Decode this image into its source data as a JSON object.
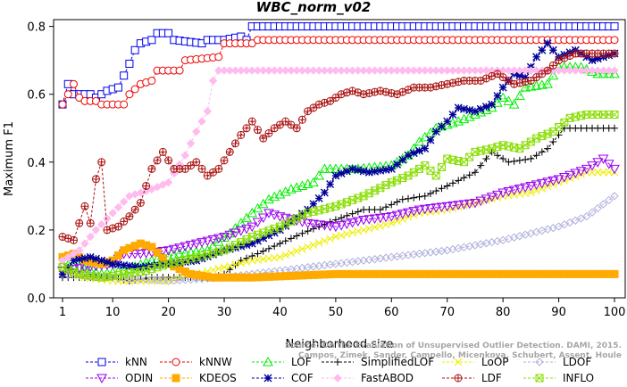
{
  "chart_data": {
    "type": "line",
    "title": "WBC_norm_v02",
    "xlabel": "Neighborhood size",
    "ylabel": "Maximum F1",
    "xlim": [
      1,
      100
    ],
    "ylim": [
      0,
      0.82
    ],
    "xticks": [
      1,
      10,
      20,
      30,
      40,
      50,
      60,
      70,
      80,
      90,
      100
    ],
    "yticks": [
      0.0,
      0.2,
      0.4,
      0.6,
      0.8
    ],
    "grid": false,
    "legend_position": "bottom",
    "watermark": [
      "Source: On the Evaluation of Unsupervised Outlier Detection. DAMI, 2015.",
      "Campos, Zimek, Sander, Campello, Micenkova, Schubert, Assent, Houle"
    ],
    "series": [
      {
        "name": "kNN",
        "color": "#0000ee",
        "marker": "square",
        "points": [
          [
            1,
            0.57
          ],
          [
            2,
            0.63
          ],
          [
            3,
            0.6
          ],
          [
            6,
            0.6
          ],
          [
            7,
            0.59
          ],
          [
            9,
            0.61
          ],
          [
            11,
            0.62
          ],
          [
            13,
            0.69
          ],
          [
            14,
            0.73
          ],
          [
            15,
            0.75
          ],
          [
            17,
            0.76
          ],
          [
            18,
            0.78
          ],
          [
            20,
            0.78
          ],
          [
            21,
            0.76
          ],
          [
            26,
            0.75
          ],
          [
            27,
            0.76
          ],
          [
            30,
            0.76
          ],
          [
            33,
            0.77
          ],
          [
            34,
            0.76
          ],
          [
            35,
            0.8
          ],
          [
            100,
            0.8
          ]
        ]
      },
      {
        "name": "kNNW",
        "color": "#ee0000",
        "marker": "circle",
        "points": [
          [
            1,
            0.57
          ],
          [
            2,
            0.6
          ],
          [
            3,
            0.63
          ],
          [
            4,
            0.59
          ],
          [
            5,
            0.58
          ],
          [
            7,
            0.58
          ],
          [
            8,
            0.57
          ],
          [
            12,
            0.57
          ],
          [
            13,
            0.6
          ],
          [
            15,
            0.63
          ],
          [
            17,
            0.64
          ],
          [
            18,
            0.67
          ],
          [
            22,
            0.67
          ],
          [
            23,
            0.7
          ],
          [
            29,
            0.71
          ],
          [
            30,
            0.75
          ],
          [
            35,
            0.75
          ],
          [
            36,
            0.76
          ],
          [
            80,
            0.76
          ],
          [
            100,
            0.76
          ]
        ]
      },
      {
        "name": "LOF",
        "color": "#00ee00",
        "marker": "triangle",
        "points": [
          [
            1,
            0.1
          ],
          [
            4,
            0.09
          ],
          [
            8,
            0.07
          ],
          [
            12,
            0.08
          ],
          [
            17,
            0.11
          ],
          [
            22,
            0.13
          ],
          [
            27,
            0.14
          ],
          [
            31,
            0.19
          ],
          [
            35,
            0.25
          ],
          [
            38,
            0.29
          ],
          [
            42,
            0.32
          ],
          [
            46,
            0.34
          ],
          [
            48,
            0.38
          ],
          [
            54,
            0.38
          ],
          [
            60,
            0.39
          ],
          [
            63,
            0.42
          ],
          [
            65,
            0.46
          ],
          [
            68,
            0.5
          ],
          [
            72,
            0.52
          ],
          [
            75,
            0.54
          ],
          [
            78,
            0.56
          ],
          [
            80,
            0.59
          ],
          [
            82,
            0.57
          ],
          [
            84,
            0.62
          ],
          [
            88,
            0.63
          ],
          [
            90,
            0.68
          ],
          [
            94,
            0.68
          ],
          [
            97,
            0.66
          ],
          [
            100,
            0.66
          ]
        ]
      },
      {
        "name": "SimplifiedLOF",
        "color": "#000000",
        "marker": "plus",
        "points": [
          [
            1,
            0.06
          ],
          [
            5,
            0.06
          ],
          [
            10,
            0.06
          ],
          [
            13,
            0.05
          ],
          [
            17,
            0.06
          ],
          [
            22,
            0.06
          ],
          [
            28,
            0.06
          ],
          [
            30,
            0.07
          ],
          [
            33,
            0.11
          ],
          [
            36,
            0.13
          ],
          [
            40,
            0.16
          ],
          [
            44,
            0.19
          ],
          [
            50,
            0.23
          ],
          [
            55,
            0.26
          ],
          [
            58,
            0.26
          ],
          [
            62,
            0.29
          ],
          [
            66,
            0.3
          ],
          [
            70,
            0.33
          ],
          [
            75,
            0.37
          ],
          [
            78,
            0.43
          ],
          [
            81,
            0.4
          ],
          [
            85,
            0.41
          ],
          [
            88,
            0.44
          ],
          [
            90,
            0.48
          ],
          [
            91,
            0.5
          ],
          [
            100,
            0.5
          ]
        ]
      },
      {
        "name": "LoOP",
        "color": "#eeee00",
        "marker": "x",
        "points": [
          [
            1,
            0.08
          ],
          [
            5,
            0.06
          ],
          [
            10,
            0.05
          ],
          [
            20,
            0.05
          ],
          [
            25,
            0.07
          ],
          [
            30,
            0.09
          ],
          [
            35,
            0.11
          ],
          [
            40,
            0.12
          ],
          [
            45,
            0.15
          ],
          [
            50,
            0.18
          ],
          [
            55,
            0.2
          ],
          [
            60,
            0.22
          ],
          [
            65,
            0.25
          ],
          [
            70,
            0.26
          ],
          [
            75,
            0.28
          ],
          [
            80,
            0.3
          ],
          [
            85,
            0.31
          ],
          [
            90,
            0.34
          ],
          [
            95,
            0.37
          ],
          [
            100,
            0.37
          ]
        ]
      },
      {
        "name": "LDOF",
        "color": "#b0b0dd",
        "marker": "diamond",
        "points": [
          [
            1,
            0.07
          ],
          [
            10,
            0.06
          ],
          [
            20,
            0.05
          ],
          [
            30,
            0.06
          ],
          [
            40,
            0.08
          ],
          [
            50,
            0.1
          ],
          [
            60,
            0.12
          ],
          [
            70,
            0.14
          ],
          [
            80,
            0.17
          ],
          [
            90,
            0.21
          ],
          [
            95,
            0.24
          ],
          [
            100,
            0.3
          ]
        ]
      },
      {
        "name": "ODIN",
        "color": "#9900ee",
        "marker": "invtriangle",
        "points": [
          [
            1,
            0.08
          ],
          [
            5,
            0.09
          ],
          [
            10,
            0.1
          ],
          [
            12,
            0.13
          ],
          [
            15,
            0.13
          ],
          [
            20,
            0.14
          ],
          [
            25,
            0.16
          ],
          [
            30,
            0.18
          ],
          [
            35,
            0.21
          ],
          [
            38,
            0.25
          ],
          [
            40,
            0.24
          ],
          [
            45,
            0.22
          ],
          [
            50,
            0.21
          ],
          [
            55,
            0.23
          ],
          [
            60,
            0.24
          ],
          [
            65,
            0.26
          ],
          [
            70,
            0.27
          ],
          [
            75,
            0.28
          ],
          [
            80,
            0.31
          ],
          [
            85,
            0.33
          ],
          [
            90,
            0.35
          ],
          [
            95,
            0.38
          ],
          [
            98,
            0.41
          ],
          [
            100,
            0.38
          ]
        ]
      },
      {
        "name": "KDEOS",
        "color": "#ffaa00",
        "marker": "squarefilled",
        "points": [
          [
            1,
            0.12
          ],
          [
            3,
            0.13
          ],
          [
            5,
            0.11
          ],
          [
            8,
            0.1
          ],
          [
            10,
            0.11
          ],
          [
            12,
            0.14
          ],
          [
            15,
            0.16
          ],
          [
            17,
            0.15
          ],
          [
            20,
            0.1
          ],
          [
            24,
            0.07
          ],
          [
            28,
            0.06
          ],
          [
            35,
            0.06
          ],
          [
            50,
            0.07
          ],
          [
            70,
            0.07
          ],
          [
            90,
            0.07
          ],
          [
            100,
            0.07
          ]
        ]
      },
      {
        "name": "COF",
        "color": "#000099",
        "marker": "star",
        "points": [
          [
            1,
            0.07
          ],
          [
            3,
            0.11
          ],
          [
            6,
            0.12
          ],
          [
            10,
            0.1
          ],
          [
            15,
            0.09
          ],
          [
            20,
            0.1
          ],
          [
            25,
            0.11
          ],
          [
            30,
            0.14
          ],
          [
            35,
            0.16
          ],
          [
            40,
            0.2
          ],
          [
            45,
            0.26
          ],
          [
            48,
            0.31
          ],
          [
            50,
            0.36
          ],
          [
            53,
            0.38
          ],
          [
            56,
            0.37
          ],
          [
            60,
            0.38
          ],
          [
            63,
            0.42
          ],
          [
            66,
            0.44
          ],
          [
            68,
            0.49
          ],
          [
            70,
            0.52
          ],
          [
            72,
            0.56
          ],
          [
            75,
            0.55
          ],
          [
            78,
            0.57
          ],
          [
            80,
            0.62
          ],
          [
            82,
            0.66
          ],
          [
            84,
            0.65
          ],
          [
            86,
            0.71
          ],
          [
            88,
            0.75
          ],
          [
            90,
            0.71
          ],
          [
            93,
            0.73
          ],
          [
            96,
            0.7
          ],
          [
            100,
            0.72
          ]
        ]
      },
      {
        "name": "FastABOD",
        "color": "#ffbbee",
        "marker": "diamondfilled",
        "points": [
          [
            1,
            0.11
          ],
          [
            4,
            0.14
          ],
          [
            7,
            0.2
          ],
          [
            10,
            0.25
          ],
          [
            13,
            0.3
          ],
          [
            17,
            0.32
          ],
          [
            20,
            0.34
          ],
          [
            23,
            0.42
          ],
          [
            25,
            0.49
          ],
          [
            27,
            0.55
          ],
          [
            28,
            0.64
          ],
          [
            29,
            0.67
          ],
          [
            100,
            0.67
          ]
        ]
      },
      {
        "name": "LDF",
        "color": "#aa1111",
        "marker": "circleplus",
        "points": [
          [
            1,
            0.18
          ],
          [
            3,
            0.17
          ],
          [
            5,
            0.27
          ],
          [
            6,
            0.22
          ],
          [
            7,
            0.35
          ],
          [
            8,
            0.4
          ],
          [
            9,
            0.2
          ],
          [
            11,
            0.21
          ],
          [
            13,
            0.24
          ],
          [
            15,
            0.28
          ],
          [
            17,
            0.38
          ],
          [
            19,
            0.43
          ],
          [
            21,
            0.38
          ],
          [
            23,
            0.38
          ],
          [
            25,
            0.4
          ],
          [
            27,
            0.36
          ],
          [
            29,
            0.38
          ],
          [
            31,
            0.43
          ],
          [
            33,
            0.48
          ],
          [
            35,
            0.52
          ],
          [
            37,
            0.47
          ],
          [
            39,
            0.5
          ],
          [
            41,
            0.52
          ],
          [
            43,
            0.5
          ],
          [
            45,
            0.55
          ],
          [
            47,
            0.57
          ],
          [
            49,
            0.58
          ],
          [
            51,
            0.6
          ],
          [
            53,
            0.61
          ],
          [
            55,
            0.6
          ],
          [
            58,
            0.61
          ],
          [
            61,
            0.6
          ],
          [
            64,
            0.62
          ],
          [
            67,
            0.62
          ],
          [
            70,
            0.63
          ],
          [
            73,
            0.64
          ],
          [
            76,
            0.64
          ],
          [
            79,
            0.66
          ],
          [
            82,
            0.63
          ],
          [
            85,
            0.64
          ],
          [
            88,
            0.67
          ],
          [
            90,
            0.7
          ],
          [
            93,
            0.72
          ],
          [
            96,
            0.72
          ],
          [
            100,
            0.72
          ]
        ]
      },
      {
        "name": "INFLO",
        "color": "#88dd00",
        "marker": "xsquare",
        "points": [
          [
            1,
            0.09
          ],
          [
            4,
            0.07
          ],
          [
            8,
            0.06
          ],
          [
            12,
            0.07
          ],
          [
            16,
            0.08
          ],
          [
            20,
            0.1
          ],
          [
            25,
            0.12
          ],
          [
            30,
            0.14
          ],
          [
            35,
            0.18
          ],
          [
            40,
            0.21
          ],
          [
            45,
            0.25
          ],
          [
            50,
            0.27
          ],
          [
            55,
            0.3
          ],
          [
            60,
            0.34
          ],
          [
            63,
            0.36
          ],
          [
            66,
            0.39
          ],
          [
            68,
            0.36
          ],
          [
            70,
            0.41
          ],
          [
            73,
            0.4
          ],
          [
            75,
            0.43
          ],
          [
            78,
            0.44
          ],
          [
            80,
            0.45
          ],
          [
            83,
            0.44
          ],
          [
            86,
            0.47
          ],
          [
            89,
            0.49
          ],
          [
            92,
            0.53
          ],
          [
            95,
            0.54
          ],
          [
            98,
            0.54
          ],
          [
            100,
            0.54
          ]
        ]
      }
    ],
    "legend_order": [
      "kNN",
      "kNNW",
      "LOF",
      "SimplifiedLOF",
      "LoOP",
      "LDOF",
      "ODIN",
      "KDEOS",
      "COF",
      "FastABOD",
      "LDF",
      "INFLO"
    ]
  }
}
